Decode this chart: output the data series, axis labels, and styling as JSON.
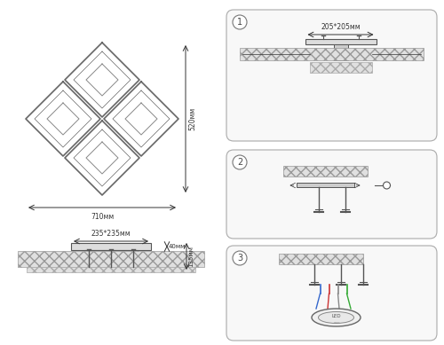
{
  "bg_color": "#ffffff",
  "line_color": "#555555",
  "dim_color": "#333333",
  "dim_520": "520мм",
  "dim_710": "710мм",
  "dim_205": "205*205мм",
  "dim_235": "235*235мм",
  "dim_40": "40мм",
  "dim_135": "135мм",
  "step1": "1",
  "step2": "2",
  "step3": "3"
}
